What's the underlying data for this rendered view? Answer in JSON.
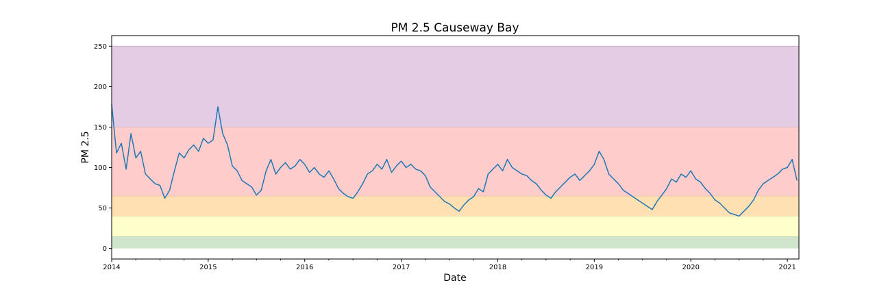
{
  "chart_data": {
    "type": "line",
    "title": "PM 2.5 Causeway Bay",
    "xlabel": "Date",
    "ylabel": "PM 2.5",
    "xlim": [
      2014.0,
      2021.12
    ],
    "ylim": [
      -13,
      263
    ],
    "x_ticks": [
      {
        "value": 2014,
        "label": "2014"
      },
      {
        "value": 2015,
        "label": "2015"
      },
      {
        "value": 2016,
        "label": "2016"
      },
      {
        "value": 2017,
        "label": "2017"
      },
      {
        "value": 2018,
        "label": "2018"
      },
      {
        "value": 2019,
        "label": "2019"
      },
      {
        "value": 2020,
        "label": "2020"
      },
      {
        "value": 2021,
        "label": "2021"
      }
    ],
    "y_ticks": [
      {
        "value": 0,
        "label": "0"
      },
      {
        "value": 50,
        "label": "50"
      },
      {
        "value": 100,
        "label": "100"
      },
      {
        "value": 150,
        "label": "150"
      },
      {
        "value": 200,
        "label": "200"
      },
      {
        "value": 250,
        "label": "250"
      }
    ],
    "bands": [
      {
        "from": 0,
        "to": 15,
        "color": "#cfe5cc"
      },
      {
        "from": 15,
        "to": 40,
        "color": "#ffffcc"
      },
      {
        "from": 40,
        "to": 65,
        "color": "#ffe0b3"
      },
      {
        "from": 65,
        "to": 150,
        "color": "#ffcccc"
      },
      {
        "from": 150,
        "to": 250,
        "color": "#e4cce5"
      }
    ],
    "line_color": "#1f77b4",
    "grid": false,
    "series": [
      {
        "x": [
          2014.0,
          2014.05,
          2014.1,
          2014.15,
          2014.2,
          2014.25,
          2014.3,
          2014.35,
          2014.4,
          2014.45,
          2014.5,
          2014.55,
          2014.6,
          2014.65,
          2014.7,
          2014.75,
          2014.8,
          2014.85,
          2014.9,
          2014.95,
          2015.0,
          2015.05,
          2015.1,
          2015.15,
          2015.2,
          2015.25,
          2015.3,
          2015.35,
          2015.4,
          2015.45,
          2015.5,
          2015.55,
          2015.6,
          2015.65,
          2015.7,
          2015.75,
          2015.8,
          2015.85,
          2015.9,
          2015.95,
          2016.0,
          2016.05,
          2016.1,
          2016.15,
          2016.2,
          2016.25,
          2016.3,
          2016.35,
          2016.4,
          2016.45,
          2016.5,
          2016.55,
          2016.6,
          2016.65,
          2016.7,
          2016.75,
          2016.8,
          2016.85,
          2016.9,
          2016.95,
          2017.0,
          2017.05,
          2017.1,
          2017.15,
          2017.2,
          2017.25,
          2017.3,
          2017.35,
          2017.4,
          2017.45,
          2017.5,
          2017.55,
          2017.6,
          2017.65,
          2017.7,
          2017.75,
          2017.8,
          2017.85,
          2017.9,
          2017.95,
          2018.0,
          2018.05,
          2018.1,
          2018.15,
          2018.2,
          2018.25,
          2018.3,
          2018.35,
          2018.4,
          2018.45,
          2018.5,
          2018.55,
          2018.6,
          2018.65,
          2018.7,
          2018.75,
          2018.8,
          2018.85,
          2018.9,
          2018.95,
          2019.0,
          2019.05,
          2019.1,
          2019.15,
          2019.2,
          2019.25,
          2019.3,
          2019.35,
          2019.4,
          2019.45,
          2019.5,
          2019.55,
          2019.6,
          2019.65,
          2019.7,
          2019.75,
          2019.8,
          2019.85,
          2019.9,
          2019.95,
          2020.0,
          2020.05,
          2020.1,
          2020.15,
          2020.2,
          2020.25,
          2020.3,
          2020.35,
          2020.4,
          2020.45,
          2020.5,
          2020.55,
          2020.6,
          2020.65,
          2020.7,
          2020.75,
          2020.8,
          2020.85,
          2020.9,
          2020.95,
          2021.0,
          2021.05,
          2021.1
        ],
        "y": [
          178,
          118,
          130,
          98,
          142,
          112,
          120,
          92,
          86,
          80,
          78,
          62,
          72,
          96,
          118,
          112,
          122,
          128,
          120,
          136,
          130,
          134,
          175,
          142,
          128,
          102,
          96,
          84,
          80,
          76,
          66,
          72,
          96,
          110,
          92,
          100,
          106,
          98,
          102,
          110,
          104,
          94,
          100,
          92,
          88,
          96,
          86,
          74,
          68,
          64,
          62,
          70,
          80,
          92,
          96,
          104,
          98,
          110,
          94,
          102,
          108,
          100,
          104,
          98,
          96,
          90,
          76,
          70,
          64,
          58,
          55,
          50,
          46,
          54,
          60,
          64,
          74,
          70,
          92,
          98,
          104,
          96,
          110,
          100,
          96,
          92,
          90,
          84,
          80,
          72,
          66,
          62,
          70,
          76,
          82,
          88,
          92,
          84,
          90,
          96,
          104,
          120,
          110,
          92,
          86,
          80,
          72,
          68,
          64,
          60,
          56,
          52,
          48,
          58,
          66,
          74,
          86,
          82,
          92,
          88,
          96,
          86,
          82,
          74,
          68,
          60,
          56,
          50,
          44,
          42,
          40,
          46,
          52,
          60,
          72,
          80,
          84,
          88,
          92,
          98,
          100,
          110,
          84
        ]
      }
    ]
  }
}
